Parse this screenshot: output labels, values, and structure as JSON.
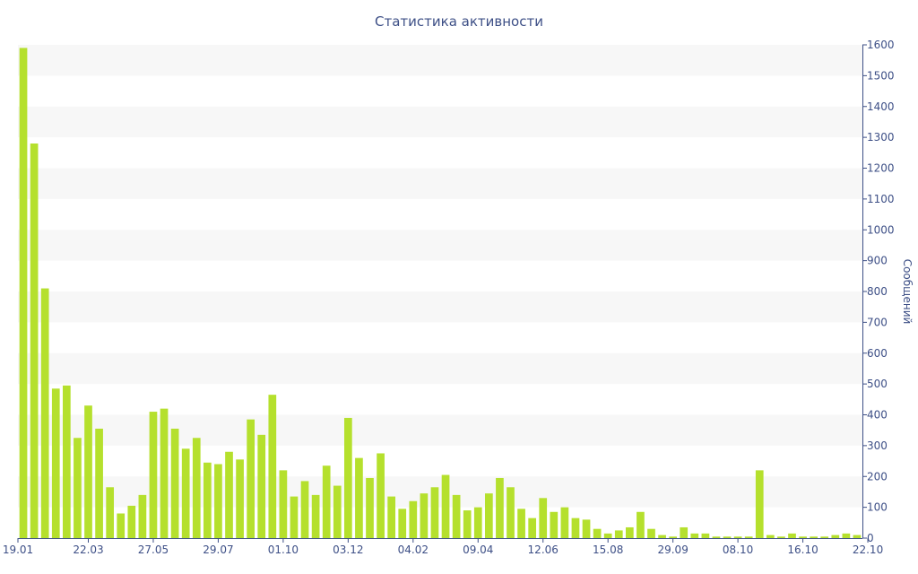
{
  "chart_data": {
    "type": "bar",
    "title": "Статистика активности",
    "ylabel": "Сообщений",
    "xlabel": "",
    "ylim": [
      0,
      1600
    ],
    "y_ticks": [
      0,
      100,
      200,
      300,
      400,
      500,
      600,
      700,
      800,
      900,
      1000,
      1100,
      1200,
      1300,
      1400,
      1500,
      1600
    ],
    "x_tick_labels": [
      {
        "index": 0,
        "label": "19.01"
      },
      {
        "index": 6,
        "label": "22.03"
      },
      {
        "index": 12,
        "label": "27.05"
      },
      {
        "index": 18,
        "label": "29.07"
      },
      {
        "index": 24,
        "label": "01.10"
      },
      {
        "index": 30,
        "label": "03.12"
      },
      {
        "index": 36,
        "label": "04.02"
      },
      {
        "index": 42,
        "label": "09.04"
      },
      {
        "index": 48,
        "label": "12.06"
      },
      {
        "index": 54,
        "label": "15.08"
      },
      {
        "index": 60,
        "label": "29.09"
      },
      {
        "index": 66,
        "label": "08.10"
      },
      {
        "index": 72,
        "label": "16.10"
      },
      {
        "index": 78,
        "label": "22.10"
      }
    ],
    "values": [
      1590,
      1280,
      810,
      485,
      495,
      325,
      430,
      355,
      165,
      80,
      105,
      140,
      410,
      420,
      355,
      290,
      325,
      245,
      240,
      280,
      255,
      385,
      335,
      465,
      220,
      135,
      185,
      140,
      235,
      170,
      390,
      260,
      195,
      275,
      135,
      95,
      120,
      145,
      165,
      205,
      140,
      90,
      100,
      145,
      195,
      165,
      95,
      65,
      130,
      85,
      100,
      65,
      60,
      30,
      15,
      25,
      35,
      85,
      30,
      10,
      5,
      35,
      15,
      15,
      5,
      5,
      5,
      5,
      220,
      10,
      5,
      15,
      5,
      5,
      5,
      10,
      15,
      10
    ],
    "bar_color": "#b5e02d",
    "band_color": "#f7f7f7",
    "text_color": "#3d4f86",
    "grid": true
  }
}
